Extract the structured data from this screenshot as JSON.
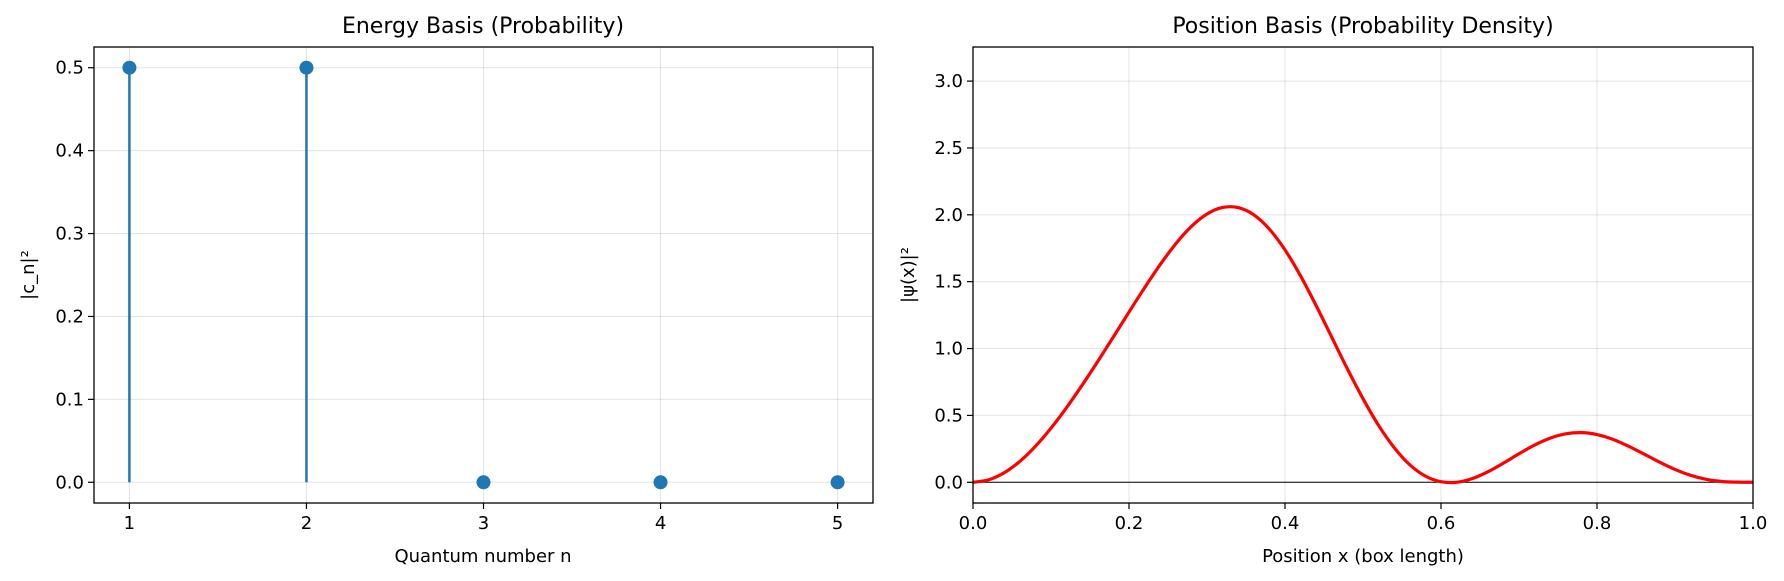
{
  "colors": {
    "stem": "#1f77b4",
    "curve": "#ff0000",
    "grid": "#b0b0b0",
    "axis": "#000000"
  },
  "chart_data": [
    {
      "type": "stem",
      "title": "Energy Basis (Probability)",
      "xlabel": "Quantum number n",
      "ylabel": "|c_n|²",
      "x": [
        1,
        2,
        3,
        4,
        5
      ],
      "values": [
        0.5,
        0.5,
        0.0,
        0.0,
        0.0
      ],
      "xlim": [
        0.8,
        5.2
      ],
      "ylim": [
        -0.025,
        0.525
      ],
      "xticks": [
        "1",
        "2",
        "3",
        "4",
        "5"
      ],
      "yticks": [
        "0.0",
        "0.1",
        "0.2",
        "0.3",
        "0.4",
        "0.5"
      ],
      "grid": true
    },
    {
      "type": "line",
      "title": "Position Basis (Probability Density)",
      "xlabel": "Position x (box length)",
      "ylabel": "|ψ(x)|²",
      "xlim": [
        0.0,
        1.0
      ],
      "ylim": [
        -0.155,
        3.255
      ],
      "xticks": [
        "0.0",
        "0.2",
        "0.4",
        "0.6",
        "0.8",
        "1.0"
      ],
      "yticks": [
        "0.0",
        "0.5",
        "1.0",
        "1.5",
        "2.0",
        "2.5",
        "3.0"
      ],
      "grid": true,
      "zero_line": true,
      "x": [
        0.0,
        0.02,
        0.04,
        0.06,
        0.08,
        0.1,
        0.12,
        0.14,
        0.16,
        0.18,
        0.2,
        0.22,
        0.24,
        0.26,
        0.28,
        0.3,
        0.32,
        0.34,
        0.36,
        0.38,
        0.4,
        0.42,
        0.44,
        0.46,
        0.48,
        0.5,
        0.52,
        0.54,
        0.56,
        0.58,
        0.6,
        0.62,
        0.64,
        0.66,
        0.68,
        0.7,
        0.72,
        0.74,
        0.76,
        0.78,
        0.8,
        0.82,
        0.84,
        0.86,
        0.88,
        0.9,
        0.92,
        0.94,
        0.96,
        0.98,
        1.0
      ],
      "values": [
        0.0,
        0.018,
        0.071,
        0.156,
        0.269,
        0.405,
        0.559,
        0.727,
        0.904,
        1.087,
        1.273,
        1.455,
        1.628,
        1.784,
        1.913,
        2.006,
        2.055,
        2.054,
        2.0,
        1.893,
        1.738,
        1.543,
        1.32,
        1.084,
        0.848,
        0.625,
        0.425,
        0.259,
        0.131,
        0.046,
        0.004,
        0.0,
        0.027,
        0.078,
        0.143,
        0.213,
        0.278,
        0.33,
        0.362,
        0.371,
        0.357,
        0.322,
        0.271,
        0.212,
        0.151,
        0.096,
        0.052,
        0.022,
        0.006,
        0.001,
        0.0
      ]
    }
  ]
}
